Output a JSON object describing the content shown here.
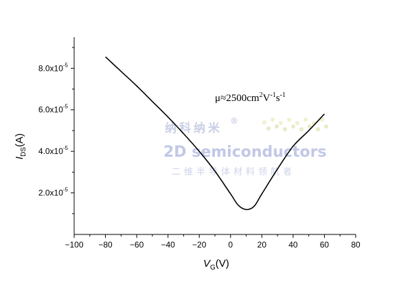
{
  "chart_data": {
    "type": "line",
    "x_axis": {
      "label_main": "V",
      "label_sub": "G",
      "label_unit": "(V)",
      "range": [
        -100,
        80
      ],
      "ticks": [
        -100,
        -80,
        -60,
        -40,
        -20,
        0,
        20,
        40,
        60,
        80
      ],
      "tick_labels": [
        "−100",
        "−80",
        "−60",
        "−40",
        "−20",
        "0",
        "20",
        "40",
        "60",
        "80"
      ]
    },
    "y_axis": {
      "label_main": "I",
      "label_sub": "DS",
      "label_unit": "(A)",
      "range": [
        0.0,
        9.5e-05
      ],
      "ticks": [
        2e-05,
        4e-05,
        6e-05,
        8e-05
      ],
      "tick_labels": [
        {
          "mantissa": "2.0x10",
          "exponent": "-5"
        },
        {
          "mantissa": "4.0x10",
          "exponent": "-5"
        },
        {
          "mantissa": "6.0x10",
          "exponent": "-5"
        },
        {
          "mantissa": "8.0x10",
          "exponent": "-5"
        }
      ]
    },
    "series": [
      {
        "color": "#000000",
        "x": [
          -80,
          -70,
          -60,
          -50,
          -40,
          -30,
          -20,
          -10,
          0,
          5,
          10,
          15,
          20,
          30,
          40,
          50,
          60
        ],
        "y": [
          8.55e-05,
          7.85e-05,
          7.15e-05,
          6.4e-05,
          5.65e-05,
          4.85e-05,
          4e-05,
          3.05e-05,
          1.95e-05,
          1.4e-05,
          1.2e-05,
          1.35e-05,
          1.95e-05,
          3.15e-05,
          4.25e-05,
          5e-05,
          5.8e-05
        ]
      }
    ],
    "annotation": {
      "mu": "μ≈2500cm",
      "sup1": "2",
      "v": "V",
      "sup2": "-1",
      "s": "s",
      "sup3": "-1"
    },
    "grid": false,
    "legend": "none"
  },
  "watermark": {
    "line1": "纳科纳米",
    "reg": "®",
    "line2": "2D semiconductors",
    "line3": "二维半导体材料领航者"
  }
}
